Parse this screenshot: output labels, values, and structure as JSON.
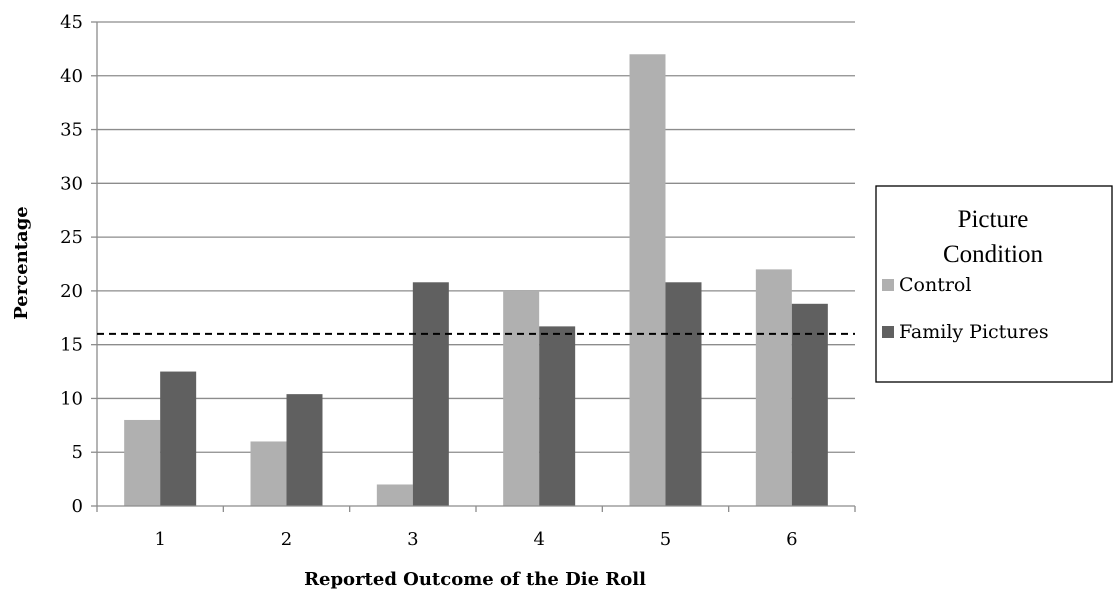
{
  "chart_data": {
    "type": "bar",
    "title": "",
    "xlabel": "Reported Outcome of the Die Roll",
    "ylabel": "Percentage",
    "categories": [
      "1",
      "2",
      "3",
      "4",
      "5",
      "6"
    ],
    "ylim": [
      0,
      45
    ],
    "yticks": [
      "0",
      "5",
      "10",
      "15",
      "20",
      "25",
      "30",
      "35",
      "40",
      "45"
    ],
    "grid": true,
    "series": [
      {
        "name": "Control",
        "values": [
          8,
          6,
          2,
          20,
          42,
          22
        ],
        "color": "#b0b0b0"
      },
      {
        "name": "Family Pictures",
        "values": [
          12.5,
          10.4,
          20.8,
          16.7,
          20.8,
          18.8
        ],
        "color": "#606060"
      }
    ],
    "reference_line": {
      "value": 16,
      "style": "dashed"
    },
    "legend": {
      "title_lines": [
        "Picture",
        "Condition"
      ],
      "placement": "right"
    }
  }
}
